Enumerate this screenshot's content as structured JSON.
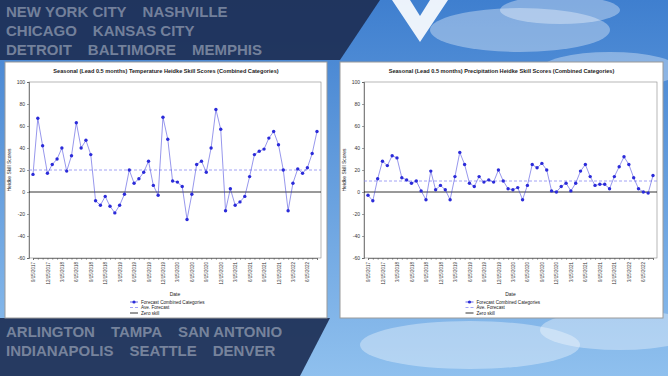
{
  "background": {
    "top": [
      [
        "NEW YORK CITY",
        "NASHVILLE"
      ],
      [
        "CHICAGO",
        "KANSAS CITY"
      ],
      [
        "DETROIT",
        "BALTIMORE",
        "MEMPHIS"
      ]
    ],
    "bottom": [
      [
        "ARLINGTON",
        "TAMPA",
        "SAN ANTONIO"
      ],
      [
        "INDIANAPOLIS",
        "SEATTLE",
        "DENVER"
      ]
    ]
  },
  "chart_data": [
    {
      "type": "line",
      "title": "Seasonal (Lead 0.5 months) Temperature Heidke Skill Scores (Combined Categories)",
      "x_label": "Date",
      "y_label": "Heidke Skill Scores",
      "categories": [
        "9/15/2017",
        null,
        null,
        "12/15/2017",
        null,
        null,
        "3/15/2018",
        null,
        null,
        "6/15/2018",
        null,
        null,
        "9/15/2018",
        null,
        null,
        "12/15/2018",
        null,
        null,
        "3/15/2019",
        null,
        null,
        "6/15/2019",
        null,
        null,
        "9/15/2019",
        null,
        null,
        "12/15/2019",
        null,
        null,
        "3/15/2020",
        null,
        null,
        "6/15/2020",
        null,
        null,
        "9/15/2020",
        null,
        null,
        "12/15/2020",
        null,
        null,
        "3/15/2021",
        null,
        null,
        "6/15/2021",
        null,
        null,
        "9/15/2021",
        null,
        null,
        "12/15/2021",
        null,
        null,
        "3/15/2022",
        null,
        null,
        "6/15/2022",
        null,
        null
      ],
      "series": [
        {
          "name": "Forecast Combined Categories",
          "color": "#2b2bd9",
          "marker": "circle",
          "line_style": "solid",
          "values": [
            16,
            67,
            42,
            17,
            25,
            30,
            40,
            19,
            33,
            63,
            40,
            47,
            34,
            -8,
            -12,
            -4,
            -13,
            -19,
            -12,
            -2,
            20,
            8,
            12,
            18,
            28,
            6,
            -3,
            68,
            48,
            10,
            9,
            5,
            -25,
            -2,
            25,
            28,
            18,
            40,
            75,
            57,
            -17,
            3,
            -12,
            -9,
            -4,
            14,
            34,
            37,
            39,
            49,
            55,
            43,
            20,
            -17,
            8,
            21,
            17,
            22,
            35,
            55
          ]
        }
      ],
      "reference_lines": [
        {
          "name": "Ave. Forecast",
          "value": 20,
          "color": "#8c8cf2",
          "line_style": "dashed"
        },
        {
          "name": "Zero skill",
          "value": 0,
          "color": "#000000",
          "line_style": "solid"
        }
      ],
      "ylim": [
        -60,
        100
      ],
      "yticks": [
        -60,
        -40,
        -20,
        0,
        20,
        40,
        60,
        80,
        100
      ],
      "grid": false,
      "legend": "bottom"
    },
    {
      "type": "line",
      "title": "Seasonal (Lead 0.5 months) Precipitation Heidke Skill Scores (Combined Categories)",
      "x_label": "Date",
      "y_label": "Heidke Skill Scores",
      "categories": [
        "9/15/2017",
        null,
        null,
        "12/15/2017",
        null,
        null,
        "3/15/2018",
        null,
        null,
        "6/15/2018",
        null,
        null,
        "9/15/2018",
        null,
        null,
        "12/15/2018",
        null,
        null,
        "3/15/2019",
        null,
        null,
        "6/15/2019",
        null,
        null,
        "9/15/2019",
        null,
        null,
        "12/15/2019",
        null,
        null,
        "3/15/2020",
        null,
        null,
        "6/15/2020",
        null,
        null,
        "9/15/2020",
        null,
        null,
        "12/15/2020",
        null,
        null,
        "3/15/2021",
        null,
        null,
        "6/15/2021",
        null,
        null,
        "9/15/2021",
        null,
        null,
        "12/15/2021",
        null,
        null,
        "3/15/2022",
        null,
        null,
        "6/15/2022",
        null,
        null
      ],
      "series": [
        {
          "name": "Forecast Combined Categories",
          "color": "#2b2bd9",
          "marker": "circle",
          "line_style": "solid",
          "values": [
            -3,
            -8,
            12,
            28,
            24,
            33,
            31,
            13,
            11,
            8,
            10,
            1,
            -7,
            19,
            2,
            6,
            2,
            -7,
            14,
            36,
            25,
            8,
            5,
            14,
            9,
            11,
            9,
            20,
            10,
            3,
            2,
            4,
            -7,
            6,
            25,
            22,
            26,
            20,
            1,
            0,
            5,
            8,
            1,
            8,
            19,
            25,
            14,
            6,
            7,
            7,
            3,
            14,
            23,
            32,
            25,
            13,
            3,
            0,
            -1,
            15
          ]
        }
      ],
      "reference_lines": [
        {
          "name": "Ave. Forecast",
          "value": 10,
          "color": "#8c8cf2",
          "line_style": "dashed"
        },
        {
          "name": "Zero skill",
          "value": 0,
          "color": "#000000",
          "line_style": "solid"
        }
      ],
      "ylim": [
        -60,
        100
      ],
      "yticks": [
        -60,
        -40,
        -20,
        0,
        20,
        40,
        60,
        80,
        100
      ],
      "grid": false,
      "legend": "bottom"
    }
  ]
}
